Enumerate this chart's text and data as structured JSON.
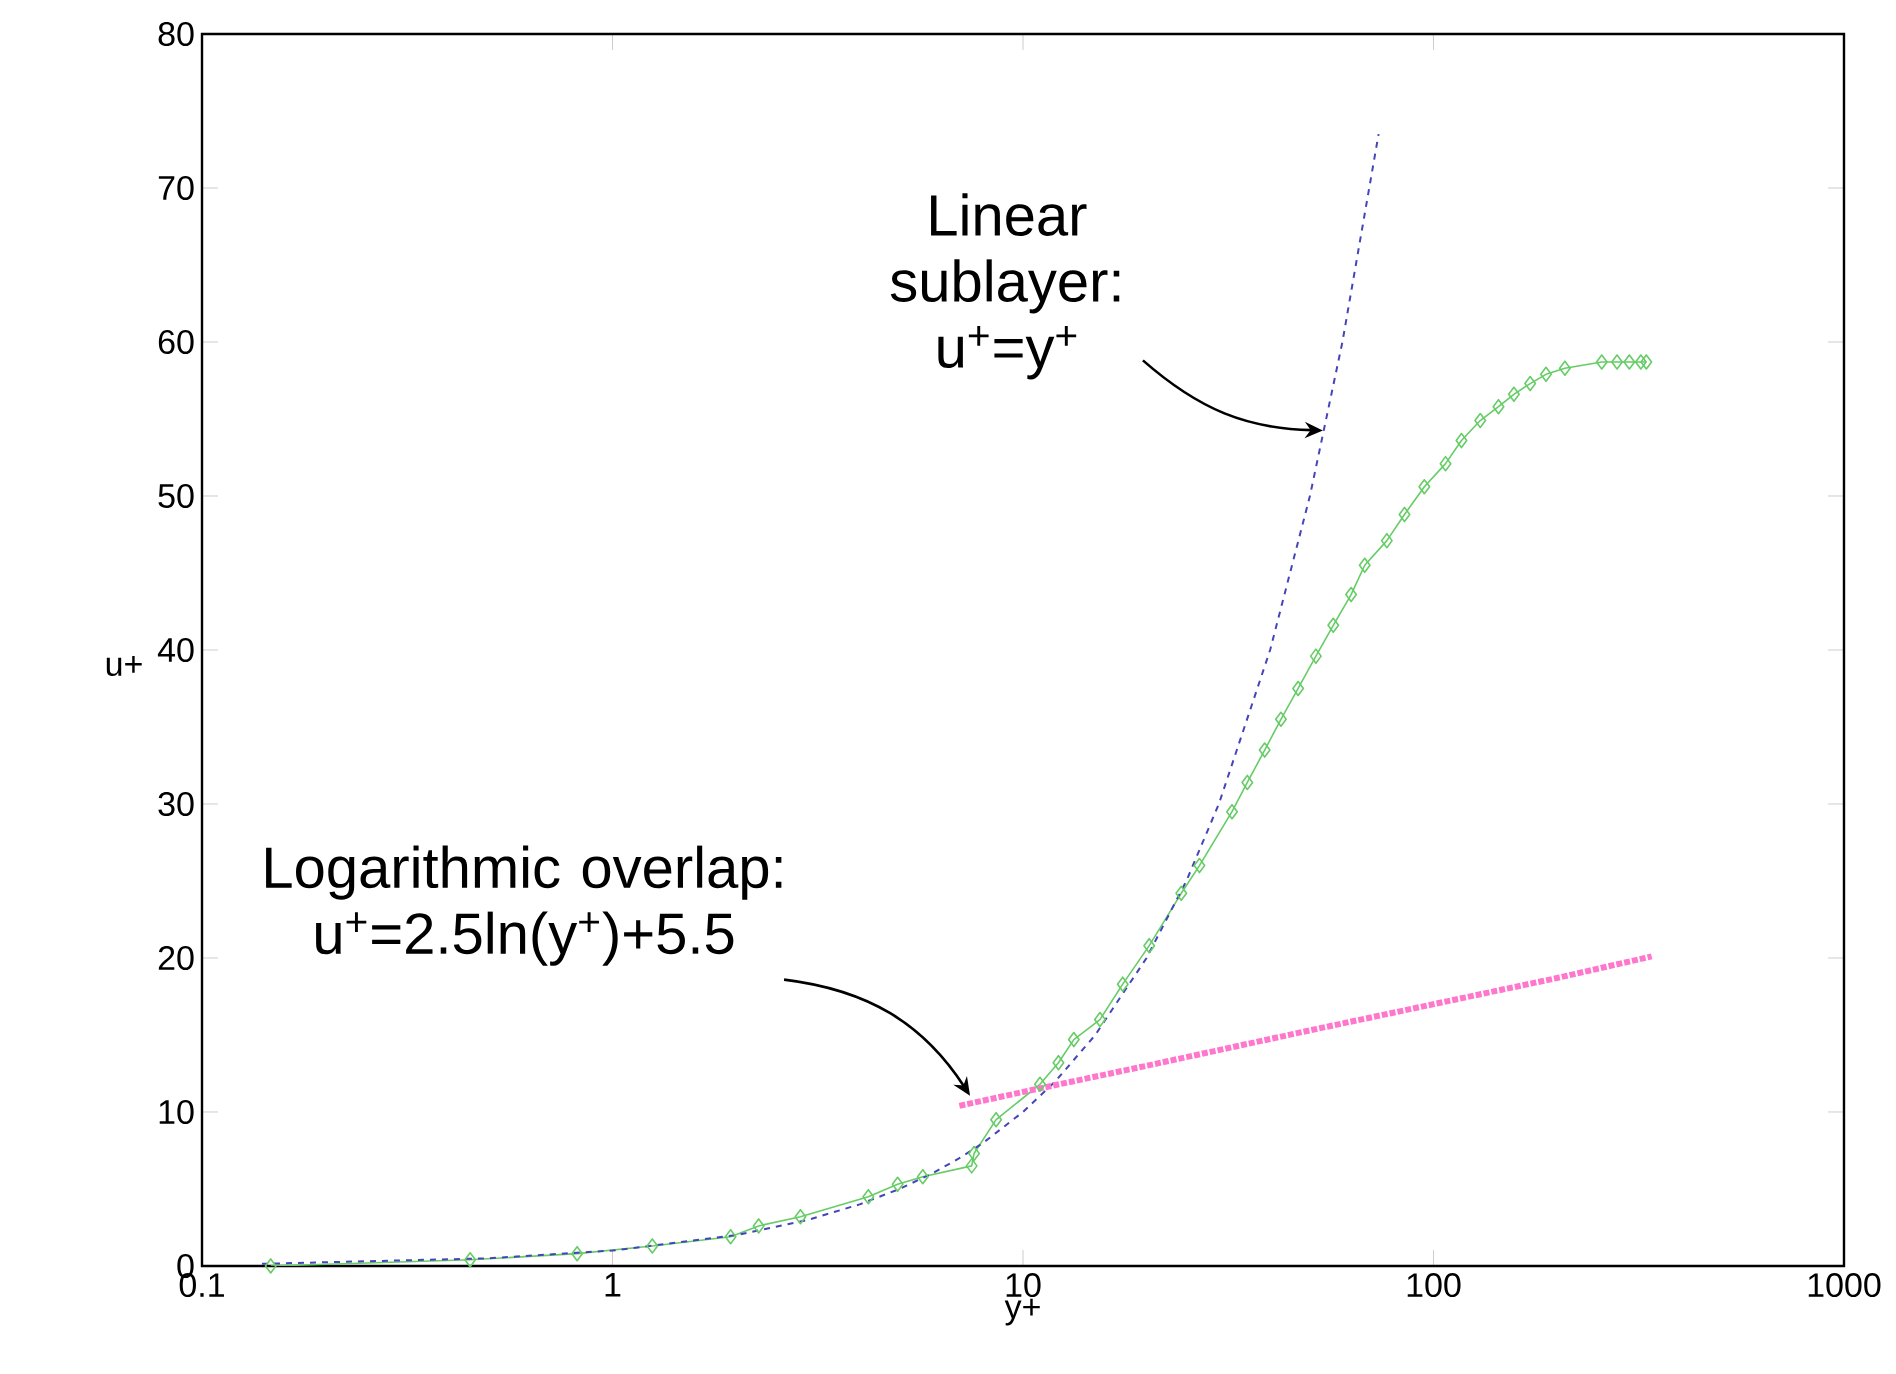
{
  "chart_data": {
    "type": "line",
    "xlabel": "y+",
    "ylabel": "u+",
    "log": "x",
    "xlim": [
      0.1,
      1000
    ],
    "ylim": [
      0,
      80
    ],
    "xticks": [
      0.1,
      1,
      10,
      100,
      1000
    ],
    "yticks": [
      0,
      10,
      20,
      30,
      40,
      50,
      60,
      70,
      80
    ],
    "series": [
      {
        "color": "#66cc66",
        "marker": "diamond",
        "line_style": "solid",
        "x": [
          0.147,
          0.45,
          0.82,
          1.25,
          1.94,
          2.27,
          2.87,
          4.2,
          4.95,
          5.7,
          7.5,
          7.6,
          8.6,
          11.0,
          12.2,
          13.3,
          15.4,
          17.5,
          20.3,
          24.3,
          26.9,
          32.3,
          35.2,
          38.8,
          42.5,
          46.8,
          51.7,
          57,
          63,
          68,
          77,
          85,
          95,
          107,
          117,
          130,
          144,
          157,
          172,
          188,
          209,
          257,
          280,
          300,
          320,
          330
        ],
        "values": [
          0,
          0.4,
          0.8,
          1.3,
          1.9,
          2.6,
          3.2,
          4.5,
          5.3,
          5.8,
          6.5,
          7.3,
          9.5,
          11.8,
          13.2,
          14.7,
          16.0,
          18.3,
          20.8,
          24.2,
          26.0,
          29.5,
          31.4,
          33.5,
          35.5,
          37.5,
          39.6,
          41.6,
          43.6,
          45.5,
          47.1,
          48.8,
          50.6,
          52.1,
          53.6,
          54.9,
          55.8,
          56.6,
          57.3,
          57.9,
          58.3,
          58.7,
          58.7,
          58.7,
          58.7,
          58.7
        ]
      },
      {
        "color": "#4444bb",
        "marker": "none",
        "line_style": "dashed",
        "x": [
          0.14,
          0.5,
          1,
          2,
          3,
          4,
          5,
          6,
          7,
          8,
          10,
          12,
          15,
          20,
          25,
          30,
          40,
          50,
          60,
          73.5
        ],
        "values": [
          0.14,
          0.5,
          1,
          2,
          3,
          4,
          5,
          6,
          7,
          8,
          10,
          12,
          15,
          20,
          25,
          30,
          40,
          50,
          60,
          73.5
        ]
      },
      {
        "color": "#ff77cc",
        "marker": "none",
        "line_style": "dotted",
        "x": [
          7,
          10,
          20,
          50,
          100,
          200,
          340
        ],
        "values": [
          10.4,
          11.3,
          13.0,
          15.3,
          17.0,
          18.7,
          20.1
        ]
      }
    ],
    "annotations": [
      {
        "text": "Linear sublayer: u$^{+}$=y$^{+}$",
        "x": 55,
        "y": 54
      },
      {
        "text": "Logarithmic overlap: u$^{+}$=2.5ln(y$^{+}$)+5.5",
        "x": 7.6,
        "y": 10.8
      }
    ]
  }
}
